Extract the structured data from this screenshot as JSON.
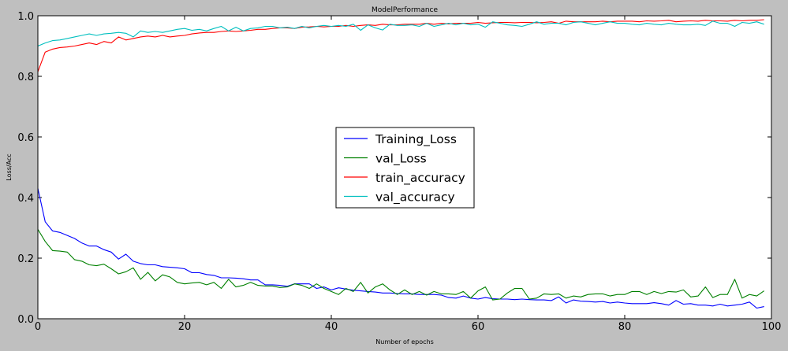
{
  "chart_data": {
    "type": "line",
    "title": "ModelPerformance",
    "xlabel": "Number of epochs",
    "ylabel": "Loss/Acc",
    "xlim": [
      0,
      100
    ],
    "ylim": [
      0.0,
      1.0
    ],
    "xticks": [
      0,
      20,
      40,
      60,
      80,
      100
    ],
    "yticks": [
      0.0,
      0.2,
      0.4,
      0.6,
      0.8,
      1.0
    ],
    "xtick_labels": [
      "0",
      "20",
      "40",
      "60",
      "80",
      "100"
    ],
    "ytick_labels": [
      "0.0",
      "0.2",
      "0.4",
      "0.6",
      "0.8",
      "1.0"
    ],
    "grid": false,
    "legend_position": "center",
    "series": [
      {
        "name": "Training_Loss",
        "color": "#0000ff",
        "values": [
          0.43,
          0.32,
          0.29,
          0.285,
          0.275,
          0.265,
          0.25,
          0.24,
          0.24,
          0.228,
          0.22,
          0.197,
          0.213,
          0.19,
          0.182,
          0.178,
          0.178,
          0.172,
          0.17,
          0.168,
          0.165,
          0.152,
          0.152,
          0.146,
          0.143,
          0.135,
          0.135,
          0.134,
          0.132,
          0.128,
          0.128,
          0.112,
          0.112,
          0.11,
          0.107,
          0.115,
          0.115,
          0.115,
          0.1,
          0.105,
          0.095,
          0.102,
          0.098,
          0.094,
          0.092,
          0.09,
          0.088,
          0.085,
          0.085,
          0.083,
          0.082,
          0.082,
          0.08,
          0.08,
          0.08,
          0.078,
          0.07,
          0.068,
          0.075,
          0.068,
          0.065,
          0.07,
          0.066,
          0.065,
          0.065,
          0.063,
          0.065,
          0.063,
          0.062,
          0.062,
          0.06,
          0.072,
          0.052,
          0.062,
          0.058,
          0.057,
          0.055,
          0.057,
          0.052,
          0.055,
          0.052,
          0.05,
          0.05,
          0.05,
          0.053,
          0.05,
          0.045,
          0.06,
          0.048,
          0.05,
          0.045,
          0.045,
          0.042,
          0.048,
          0.042,
          0.045,
          0.048,
          0.055,
          0.035,
          0.04
        ]
      },
      {
        "name": "val_Loss",
        "color": "#008000",
        "values": [
          0.295,
          0.255,
          0.225,
          0.223,
          0.22,
          0.195,
          0.19,
          0.178,
          0.175,
          0.18,
          0.165,
          0.148,
          0.155,
          0.168,
          0.13,
          0.153,
          0.125,
          0.145,
          0.138,
          0.12,
          0.115,
          0.118,
          0.12,
          0.112,
          0.12,
          0.1,
          0.13,
          0.105,
          0.11,
          0.12,
          0.11,
          0.108,
          0.108,
          0.103,
          0.105,
          0.115,
          0.11,
          0.1,
          0.115,
          0.1,
          0.09,
          0.08,
          0.1,
          0.09,
          0.12,
          0.085,
          0.105,
          0.115,
          0.095,
          0.08,
          0.095,
          0.08,
          0.09,
          0.078,
          0.09,
          0.082,
          0.082,
          0.08,
          0.09,
          0.068,
          0.092,
          0.105,
          0.062,
          0.065,
          0.085,
          0.1,
          0.1,
          0.065,
          0.068,
          0.082,
          0.08,
          0.082,
          0.068,
          0.075,
          0.072,
          0.08,
          0.082,
          0.082,
          0.075,
          0.08,
          0.08,
          0.09,
          0.09,
          0.08,
          0.09,
          0.083,
          0.09,
          0.088,
          0.095,
          0.072,
          0.075,
          0.105,
          0.07,
          0.08,
          0.08,
          0.13,
          0.068,
          0.08,
          0.075,
          0.092
        ]
      },
      {
        "name": "train_accuracy",
        "color": "#ff0000",
        "values": [
          0.815,
          0.88,
          0.89,
          0.895,
          0.897,
          0.9,
          0.905,
          0.91,
          0.905,
          0.915,
          0.91,
          0.93,
          0.92,
          0.925,
          0.93,
          0.933,
          0.93,
          0.935,
          0.93,
          0.933,
          0.935,
          0.94,
          0.943,
          0.945,
          0.945,
          0.948,
          0.95,
          0.948,
          0.95,
          0.952,
          0.955,
          0.955,
          0.958,
          0.96,
          0.96,
          0.958,
          0.962,
          0.963,
          0.965,
          0.963,
          0.965,
          0.965,
          0.968,
          0.965,
          0.968,
          0.97,
          0.968,
          0.972,
          0.97,
          0.97,
          0.972,
          0.972,
          0.972,
          0.975,
          0.972,
          0.975,
          0.973,
          0.975,
          0.975,
          0.975,
          0.978,
          0.975,
          0.977,
          0.978,
          0.978,
          0.977,
          0.978,
          0.978,
          0.977,
          0.978,
          0.98,
          0.975,
          0.982,
          0.98,
          0.98,
          0.98,
          0.98,
          0.982,
          0.98,
          0.982,
          0.982,
          0.982,
          0.98,
          0.983,
          0.982,
          0.983,
          0.985,
          0.98,
          0.982,
          0.983,
          0.982,
          0.985,
          0.983,
          0.983,
          0.982,
          0.985,
          0.983,
          0.985,
          0.985,
          0.987
        ]
      },
      {
        "name": "val_accuracy",
        "color": "#00bfbf",
        "values": [
          0.9,
          0.91,
          0.918,
          0.92,
          0.925,
          0.93,
          0.935,
          0.94,
          0.935,
          0.94,
          0.942,
          0.945,
          0.942,
          0.93,
          0.95,
          0.945,
          0.948,
          0.945,
          0.95,
          0.955,
          0.958,
          0.952,
          0.955,
          0.95,
          0.958,
          0.965,
          0.95,
          0.962,
          0.95,
          0.958,
          0.96,
          0.965,
          0.965,
          0.96,
          0.962,
          0.958,
          0.965,
          0.96,
          0.965,
          0.968,
          0.965,
          0.968,
          0.965,
          0.972,
          0.952,
          0.97,
          0.96,
          0.953,
          0.972,
          0.968,
          0.968,
          0.97,
          0.965,
          0.975,
          0.965,
          0.97,
          0.975,
          0.97,
          0.975,
          0.97,
          0.972,
          0.962,
          0.98,
          0.975,
          0.97,
          0.968,
          0.965,
          0.972,
          0.98,
          0.972,
          0.975,
          0.975,
          0.97,
          0.978,
          0.98,
          0.975,
          0.97,
          0.975,
          0.98,
          0.975,
          0.975,
          0.972,
          0.97,
          0.975,
          0.972,
          0.97,
          0.975,
          0.972,
          0.97,
          0.97,
          0.972,
          0.968,
          0.982,
          0.975,
          0.975,
          0.965,
          0.978,
          0.975,
          0.98,
          0.972
        ]
      }
    ]
  }
}
